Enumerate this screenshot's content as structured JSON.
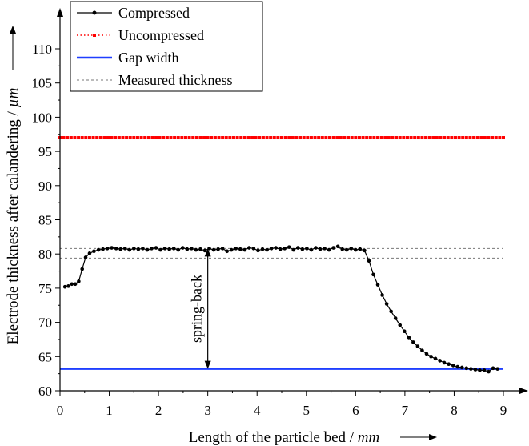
{
  "chart_data": {
    "type": "line",
    "xlabel": "Length of the particle bed / mm",
    "xlabel_main": "Length of the particle bed / ",
    "xlabel_unit": "mm",
    "ylabel": "Electrode thickness after calandering / µm",
    "ylabel_main": "Electrode thickness after calandering / ",
    "ylabel_unit": "µm",
    "xlim": [
      0,
      9.3
    ],
    "ylim": [
      61.5,
      116
    ],
    "xticks": [
      0,
      1,
      2,
      3,
      4,
      5,
      6,
      7,
      8,
      9
    ],
    "yticks": [
      60,
      65,
      70,
      75,
      80,
      85,
      90,
      95,
      100,
      105,
      110
    ],
    "legend_position": "top-left",
    "annotation": {
      "text": "spring-back",
      "x": 3.0,
      "y_from": 63.2,
      "y_to": 80.8
    },
    "series": [
      {
        "name": "Compressed",
        "style": "line-with-markers",
        "color": "#000000",
        "x": [
          0.1,
          0.17,
          0.24,
          0.31,
          0.38,
          0.45,
          0.52,
          0.6,
          0.69,
          0.78,
          0.87,
          0.96,
          1.05,
          1.14,
          1.23,
          1.32,
          1.41,
          1.5,
          1.59,
          1.68,
          1.77,
          1.86,
          1.95,
          2.04,
          2.13,
          2.22,
          2.31,
          2.4,
          2.49,
          2.58,
          2.67,
          2.76,
          2.85,
          2.94,
          3.03,
          3.12,
          3.21,
          3.3,
          3.39,
          3.48,
          3.57,
          3.66,
          3.75,
          3.84,
          3.93,
          4.02,
          4.11,
          4.2,
          4.29,
          4.38,
          4.47,
          4.56,
          4.65,
          4.74,
          4.83,
          4.92,
          5.01,
          5.1,
          5.19,
          5.28,
          5.37,
          5.46,
          5.55,
          5.64,
          5.73,
          5.82,
          5.91,
          6.0,
          6.09,
          6.18,
          6.27,
          6.36,
          6.45,
          6.54,
          6.63,
          6.72,
          6.81,
          6.9,
          6.99,
          7.08,
          7.17,
          7.26,
          7.35,
          7.44,
          7.53,
          7.62,
          7.71,
          7.8,
          7.89,
          7.98,
          8.07,
          8.16,
          8.25,
          8.34,
          8.43,
          8.52,
          8.61,
          8.7,
          8.79,
          8.88
        ],
        "y": [
          75.2,
          75.3,
          75.6,
          75.6,
          76.0,
          77.8,
          79.5,
          80.1,
          80.4,
          80.6,
          80.7,
          80.8,
          80.9,
          80.8,
          80.7,
          80.8,
          80.6,
          80.8,
          80.7,
          80.8,
          80.6,
          80.8,
          80.9,
          80.6,
          80.8,
          80.7,
          80.8,
          80.6,
          80.9,
          80.7,
          80.8,
          80.6,
          80.7,
          80.5,
          80.8,
          80.6,
          80.7,
          80.8,
          80.4,
          80.6,
          80.8,
          80.7,
          80.6,
          80.9,
          80.8,
          80.5,
          80.7,
          80.6,
          80.8,
          80.9,
          80.7,
          80.8,
          81.0,
          80.6,
          80.9,
          80.7,
          80.8,
          80.6,
          80.9,
          80.7,
          80.8,
          80.6,
          80.9,
          81.1,
          80.7,
          80.6,
          80.8,
          80.6,
          80.7,
          80.5,
          79.0,
          77.0,
          75.5,
          74.0,
          72.7,
          71.6,
          70.6,
          69.6,
          68.7,
          67.8,
          67.1,
          66.5,
          65.9,
          65.4,
          65.0,
          64.7,
          64.4,
          64.1,
          63.9,
          63.7,
          63.5,
          63.4,
          63.3,
          63.2,
          63.1,
          63.0,
          63.0,
          62.8,
          63.3,
          63.2
        ]
      },
      {
        "name": "Uncompressed",
        "style": "dotted-markers",
        "color": "#ff0000",
        "x": [
          0,
          9
        ],
        "y": [
          97.0,
          97.0
        ]
      },
      {
        "name": "Gap width",
        "style": "solid-line",
        "color": "#1f3fff",
        "x": [
          0,
          9
        ],
        "y": [
          63.2,
          63.2
        ]
      },
      {
        "name": "Measured thickness",
        "style": "dashed-line",
        "color": "#777777",
        "lines": [
          {
            "x": [
              0,
              9
            ],
            "y": [
              80.8,
              80.8
            ]
          },
          {
            "x": [
              0,
              9
            ],
            "y": [
              79.4,
              79.4
            ]
          }
        ]
      }
    ]
  }
}
